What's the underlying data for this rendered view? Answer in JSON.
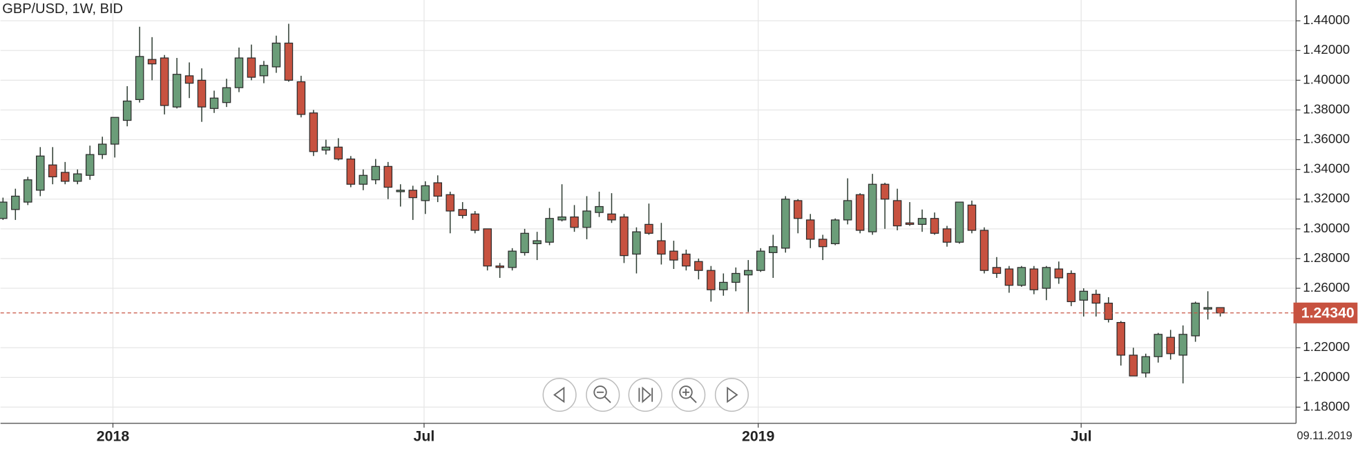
{
  "chart_data": {
    "type": "candlestick",
    "title": "GBP/USD, 1W, BID",
    "open": [
      1.307,
      1.313,
      1.318,
      1.326,
      1.343,
      1.338,
      1.332,
      1.336,
      1.35,
      1.357,
      1.373,
      1.387,
      1.414,
      1.415,
      1.382,
      1.403,
      1.4,
      1.381,
      1.385,
      1.395,
      1.415,
      1.403,
      1.409,
      1.425,
      1.399,
      1.378,
      1.353,
      1.355,
      1.347,
      1.33,
      1.333,
      1.342,
      1.325,
      1.326,
      1.319,
      1.331,
      1.323,
      1.313,
      1.31,
      1.3,
      1.275,
      1.274,
      1.284,
      1.29,
      1.291,
      1.306,
      1.308,
      1.301,
      1.311,
      1.31,
      1.308,
      1.283,
      1.303,
      1.292,
      1.285,
      1.283,
      1.278,
      1.272,
      1.259,
      1.264,
      1.269,
      1.272,
      1.284,
      1.287,
      1.319,
      1.306,
      1.293,
      1.29,
      1.306,
      1.323,
      1.298,
      1.33,
      1.319,
      1.304,
      1.303,
      1.307,
      1.3,
      1.291,
      1.316,
      1.299,
      1.274,
      1.273,
      1.262,
      1.273,
      1.26,
      1.273,
      1.27,
      1.252,
      1.256,
      1.25,
      1.237,
      1.215,
      1.203,
      1.214,
      1.227,
      1.215,
      1.228,
      1.246,
      1.247
    ],
    "high": [
      1.321,
      1.327,
      1.335,
      1.355,
      1.355,
      1.345,
      1.34,
      1.356,
      1.362,
      1.375,
      1.396,
      1.436,
      1.429,
      1.417,
      1.415,
      1.412,
      1.408,
      1.393,
      1.401,
      1.422,
      1.424,
      1.413,
      1.43,
      1.438,
      1.403,
      1.38,
      1.36,
      1.361,
      1.349,
      1.34,
      1.347,
      1.345,
      1.33,
      1.329,
      1.332,
      1.336,
      1.325,
      1.318,
      1.312,
      1.3,
      1.277,
      1.287,
      1.3,
      1.298,
      1.314,
      1.33,
      1.316,
      1.322,
      1.325,
      1.324,
      1.31,
      1.301,
      1.317,
      1.304,
      1.292,
      1.286,
      1.28,
      1.275,
      1.27,
      1.274,
      1.279,
      1.287,
      1.296,
      1.322,
      1.32,
      1.31,
      1.296,
      1.307,
      1.334,
      1.324,
      1.337,
      1.331,
      1.327,
      1.318,
      1.313,
      1.311,
      1.302,
      1.318,
      1.319,
      1.301,
      1.281,
      1.275,
      1.275,
      1.275,
      1.275,
      1.278,
      1.272,
      1.26,
      1.259,
      1.254,
      1.238,
      1.22,
      1.216,
      1.23,
      1.232,
      1.235,
      1.251,
      1.258,
      1.247
    ],
    "low": [
      1.306,
      1.306,
      1.316,
      1.322,
      1.33,
      1.33,
      1.33,
      1.333,
      1.347,
      1.348,
      1.369,
      1.385,
      1.4,
      1.377,
      1.381,
      1.388,
      1.372,
      1.378,
      1.382,
      1.392,
      1.4,
      1.398,
      1.405,
      1.399,
      1.375,
      1.349,
      1.35,
      1.346,
      1.328,
      1.326,
      1.33,
      1.32,
      1.315,
      1.306,
      1.31,
      1.318,
      1.297,
      1.307,
      1.297,
      1.272,
      1.267,
      1.272,
      1.282,
      1.279,
      1.289,
      1.305,
      1.298,
      1.293,
      1.308,
      1.304,
      1.277,
      1.27,
      1.296,
      1.276,
      1.273,
      1.272,
      1.266,
      1.251,
      1.255,
      1.258,
      1.244,
      1.271,
      1.267,
      1.284,
      1.297,
      1.287,
      1.279,
      1.289,
      1.303,
      1.297,
      1.296,
      1.3,
      1.299,
      1.302,
      1.298,
      1.296,
      1.288,
      1.29,
      1.297,
      1.27,
      1.267,
      1.257,
      1.261,
      1.256,
      1.252,
      1.263,
      1.248,
      1.241,
      1.241,
      1.237,
      1.208,
      1.201,
      1.2,
      1.21,
      1.212,
      1.196,
      1.224,
      1.239,
      1.241
    ],
    "close": [
      1.318,
      1.322,
      1.333,
      1.349,
      1.335,
      1.332,
      1.337,
      1.35,
      1.357,
      1.375,
      1.386,
      1.416,
      1.411,
      1.383,
      1.404,
      1.398,
      1.382,
      1.388,
      1.395,
      1.415,
      1.402,
      1.41,
      1.425,
      1.4,
      1.377,
      1.352,
      1.355,
      1.347,
      1.33,
      1.336,
      1.342,
      1.328,
      1.326,
      1.321,
      1.329,
      1.322,
      1.312,
      1.309,
      1.299,
      1.275,
      1.274,
      1.285,
      1.297,
      1.292,
      1.307,
      1.308,
      1.301,
      1.312,
      1.315,
      1.306,
      1.282,
      1.298,
      1.297,
      1.283,
      1.279,
      1.275,
      1.272,
      1.259,
      1.264,
      1.27,
      1.272,
      1.285,
      1.288,
      1.32,
      1.307,
      1.293,
      1.288,
      1.306,
      1.319,
      1.299,
      1.33,
      1.32,
      1.302,
      1.303,
      1.307,
      1.297,
      1.291,
      1.318,
      1.299,
      1.272,
      1.27,
      1.262,
      1.274,
      1.259,
      1.274,
      1.267,
      1.251,
      1.258,
      1.25,
      1.239,
      1.215,
      1.201,
      1.214,
      1.229,
      1.216,
      1.229,
      1.25,
      1.247,
      1.2434
    ],
    "up_color": "#6b9d79",
    "down_color": "#c75240",
    "last_price": {
      "value": 1.2434,
      "label": "1.24340"
    },
    "date_label": "09.11.2019",
    "xlim": [
      -0.2,
      104.1
    ],
    "xticks": [
      {
        "value": 8.85,
        "label": "2018"
      },
      {
        "value": 33.9,
        "label": "Jul"
      },
      {
        "value": 60.8,
        "label": "2019"
      },
      {
        "value": 86.8,
        "label": "Jul"
      }
    ],
    "ylim": [
      1.1691,
      1.454
    ],
    "yticks": [
      {
        "value": 1.18,
        "label": "1.18000"
      },
      {
        "value": 1.2,
        "label": "1.20000"
      },
      {
        "value": 1.22,
        "label": "1.22000"
      },
      {
        "value": 1.26,
        "label": "1.26000"
      },
      {
        "value": 1.28,
        "label": "1.28000"
      },
      {
        "value": 1.3,
        "label": "1.30000"
      },
      {
        "value": 1.32,
        "label": "1.32000"
      },
      {
        "value": 1.34,
        "label": "1.34000"
      },
      {
        "value": 1.36,
        "label": "1.36000"
      },
      {
        "value": 1.38,
        "label": "1.38000"
      },
      {
        "value": 1.4,
        "label": "1.40000"
      },
      {
        "value": 1.42,
        "label": "1.42000"
      },
      {
        "value": 1.44,
        "label": "1.44000"
      }
    ],
    "grid": true
  }
}
